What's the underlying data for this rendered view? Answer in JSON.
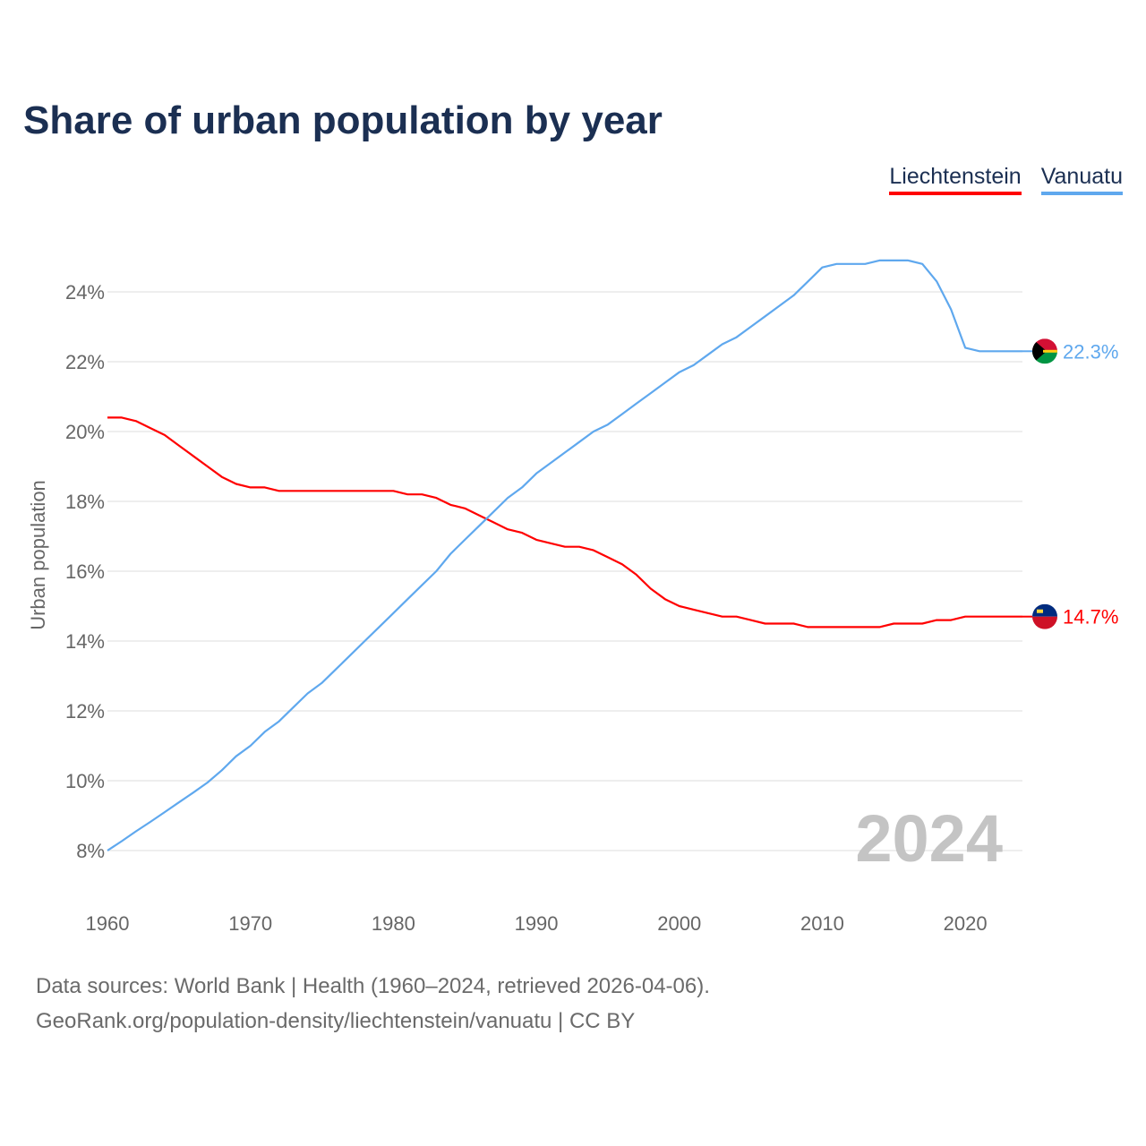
{
  "header": {
    "title": "Share of urban population by year"
  },
  "legend": [
    {
      "label": "Liechtenstein",
      "color": "#ff0000"
    },
    {
      "label": "Vanuatu",
      "color": "#5fa8ee"
    }
  ],
  "footer": {
    "line1": "Data sources: World Bank | Health (1960–2024, retrieved 2026-04-06).",
    "line2": "GeoRank.org/population-density/liechtenstein/vanuatu | CC BY"
  },
  "chart_data": {
    "type": "line",
    "title": "Share of urban population by year",
    "xlabel": "",
    "ylabel": "Urban population",
    "xlim": [
      1960,
      2024
    ],
    "ylim": [
      7,
      25.5
    ],
    "xticks": [
      1960,
      1970,
      1980,
      1990,
      2000,
      2010,
      2020
    ],
    "yticks": [
      8,
      10,
      12,
      14,
      16,
      18,
      20,
      22,
      24
    ],
    "ytick_suffix": "%",
    "year_label": "2024",
    "x_start": 1960,
    "series": [
      {
        "name": "Liechtenstein",
        "color": "#ff0000",
        "end_label": "14.7%",
        "flag": "liechtenstein-flag",
        "values": [
          20.4,
          20.4,
          20.3,
          20.1,
          19.9,
          19.6,
          19.3,
          19.0,
          18.7,
          18.5,
          18.4,
          18.4,
          18.3,
          18.3,
          18.3,
          18.3,
          18.3,
          18.3,
          18.3,
          18.3,
          18.3,
          18.2,
          18.2,
          18.1,
          17.9,
          17.8,
          17.6,
          17.4,
          17.2,
          17.1,
          16.9,
          16.8,
          16.7,
          16.7,
          16.6,
          16.4,
          16.2,
          15.9,
          15.5,
          15.2,
          15.0,
          14.9,
          14.8,
          14.7,
          14.7,
          14.6,
          14.5,
          14.5,
          14.5,
          14.4,
          14.4,
          14.4,
          14.4,
          14.4,
          14.4,
          14.5,
          14.5,
          14.5,
          14.6,
          14.6,
          14.7,
          14.7,
          14.7,
          14.7,
          14.7
        ]
      },
      {
        "name": "Vanuatu",
        "color": "#5fa8ee",
        "end_label": "22.3%",
        "flag": "vanuatu-flag",
        "values": [
          8.0,
          8.27,
          8.55,
          8.82,
          9.1,
          9.38,
          9.66,
          9.95,
          10.3,
          10.7,
          11.0,
          11.4,
          11.7,
          12.1,
          12.5,
          12.8,
          13.2,
          13.6,
          14.0,
          14.4,
          14.8,
          15.2,
          15.6,
          16.0,
          16.5,
          16.9,
          17.3,
          17.7,
          18.1,
          18.4,
          18.8,
          19.1,
          19.4,
          19.7,
          20.0,
          20.2,
          20.5,
          20.8,
          21.1,
          21.4,
          21.7,
          21.9,
          22.2,
          22.5,
          22.7,
          23.0,
          23.3,
          23.6,
          23.9,
          24.3,
          24.7,
          24.8,
          24.8,
          24.8,
          24.9,
          24.9,
          24.9,
          24.8,
          24.3,
          23.5,
          22.4,
          22.3,
          22.3,
          22.3,
          22.3
        ]
      }
    ]
  }
}
